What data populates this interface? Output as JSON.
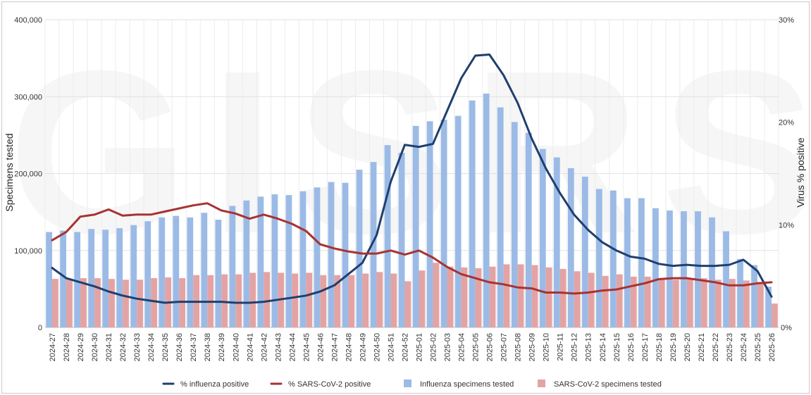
{
  "chart_data": {
    "type": "bar",
    "title": "",
    "watermark": "GISRS",
    "xlabel": "",
    "ylabel": "Specimens tested",
    "y2label": "Virus % positive",
    "ylim": [
      0,
      400000
    ],
    "y2lim": [
      0,
      0.3
    ],
    "yticks": [
      0,
      100000,
      200000,
      300000,
      400000
    ],
    "yticklabels": [
      "0",
      "100,000",
      "200,000",
      "300,000",
      "400,000"
    ],
    "y2ticks": [
      0,
      0.1,
      0.2,
      0.3
    ],
    "y2ticklabels": [
      "0%",
      "10%",
      "20%",
      "30%"
    ],
    "grid": true,
    "legend_position": "bottom",
    "categories": [
      "2024-27",
      "2024-28",
      "2024-29",
      "2024-30",
      "2024-31",
      "2024-32",
      "2024-33",
      "2024-34",
      "2024-35",
      "2024-36",
      "2024-37",
      "2024-38",
      "2024-39",
      "2024-40",
      "2024-41",
      "2024-42",
      "2024-43",
      "2024-44",
      "2024-45",
      "2024-46",
      "2024-47",
      "2024-48",
      "2024-49",
      "2024-50",
      "2024-51",
      "2024-52",
      "2025-01",
      "2025-02",
      "2025-03",
      "2025-04",
      "2025-05",
      "2025-06",
      "2025-07",
      "2025-08",
      "2025-09",
      "2025-10",
      "2025-11",
      "2025-12",
      "2025-13",
      "2025-14",
      "2025-15",
      "2025-16",
      "2025-17",
      "2025-18",
      "2025-19",
      "2025-20",
      "2025-21",
      "2025-22",
      "2025-23",
      "2025-24",
      "2025-25",
      "2025-26"
    ],
    "series": [
      {
        "name": "% influenza positive",
        "kind": "line",
        "axis": "right",
        "color": "#1f3f6e",
        "values": [
          0.058,
          0.048,
          0.044,
          0.04,
          0.035,
          0.031,
          0.028,
          0.026,
          0.024,
          0.025,
          0.025,
          0.025,
          0.025,
          0.024,
          0.024,
          0.025,
          0.027,
          0.029,
          0.031,
          0.035,
          0.041,
          0.052,
          0.063,
          0.09,
          0.142,
          0.178,
          0.176,
          0.179,
          0.211,
          0.243,
          0.265,
          0.266,
          0.246,
          0.219,
          0.184,
          0.155,
          0.131,
          0.11,
          0.095,
          0.083,
          0.075,
          0.069,
          0.067,
          0.062,
          0.06,
          0.061,
          0.06,
          0.06,
          0.061,
          0.066,
          0.055,
          0.03
        ]
      },
      {
        "name": "% SARS-CoV-2 positive",
        "kind": "line",
        "axis": "right",
        "color": "#a83232",
        "values": [
          0.085,
          0.093,
          0.108,
          0.11,
          0.115,
          0.109,
          0.11,
          0.11,
          0.113,
          0.116,
          0.119,
          0.121,
          0.114,
          0.111,
          0.106,
          0.11,
          0.106,
          0.101,
          0.094,
          0.081,
          0.077,
          0.074,
          0.072,
          0.072,
          0.075,
          0.071,
          0.075,
          0.068,
          0.059,
          0.052,
          0.048,
          0.044,
          0.042,
          0.039,
          0.038,
          0.034,
          0.034,
          0.033,
          0.034,
          0.036,
          0.037,
          0.04,
          0.043,
          0.047,
          0.048,
          0.048,
          0.046,
          0.044,
          0.041,
          0.041,
          0.043,
          0.044
        ]
      },
      {
        "name": "Influenza specimens tested",
        "kind": "bar",
        "axis": "left",
        "color": "#9bbbe6",
        "values": [
          124000,
          126000,
          124000,
          128000,
          127000,
          129000,
          133000,
          138000,
          143000,
          145000,
          143000,
          149000,
          140000,
          158000,
          165000,
          170000,
          173000,
          172000,
          177000,
          182000,
          189000,
          188000,
          205000,
          215000,
          237000,
          227000,
          262000,
          268000,
          270000,
          275000,
          295000,
          304000,
          286000,
          267000,
          253000,
          232000,
          221000,
          207000,
          196000,
          180000,
          178000,
          168000,
          168000,
          155000,
          152000,
          151000,
          151000,
          143000,
          125000,
          89000,
          81000,
          53000
        ]
      },
      {
        "name": "SARS-CoV-2 specimens tested",
        "kind": "bar",
        "axis": "left",
        "color": "#e4a3a3",
        "values": [
          63000,
          63000,
          64000,
          64000,
          63000,
          62000,
          62000,
          64000,
          65000,
          64000,
          68000,
          68000,
          69000,
          69000,
          71000,
          72000,
          71000,
          70000,
          71000,
          68000,
          68000,
          68000,
          70000,
          72000,
          70000,
          60000,
          74000,
          84000,
          79000,
          78000,
          77000,
          79000,
          82000,
          82000,
          81000,
          78000,
          76000,
          73000,
          71000,
          67000,
          69000,
          66000,
          66000,
          64000,
          62000,
          64000,
          64000,
          62000,
          63000,
          61000,
          59000,
          31000
        ]
      }
    ]
  }
}
